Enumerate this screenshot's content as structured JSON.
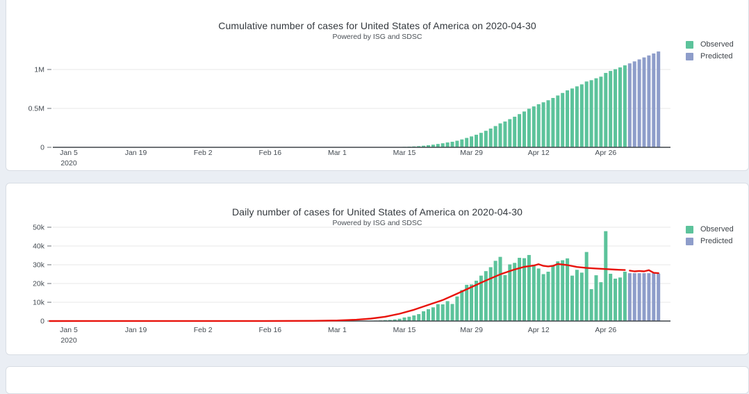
{
  "page": {
    "background_color": "#eaeef4",
    "panel_border_color": "#d8dde4",
    "observed_color": "#5cc39b",
    "predicted_color": "#8e9dca",
    "trend_color": "#e8130c"
  },
  "chart_data": [
    {
      "type": "bar",
      "title": "Cumulative number of cases for United States of America on 2020-04-30",
      "subtitle": "Powered by ISG and SDSC",
      "legend": [
        {
          "label": "Observed",
          "color": "#5cc39b"
        },
        {
          "label": "Predicted",
          "color": "#8e9dca"
        }
      ],
      "legend_position": "right-top",
      "grid": true,
      "ylim": [
        0,
        1300000
      ],
      "yticks": [
        {
          "value": 0,
          "label": "0"
        },
        {
          "value": 500000,
          "label": "0.5M"
        },
        {
          "value": 1000000,
          "label": "1M"
        }
      ],
      "xticks": [
        {
          "date": "2020-01-05",
          "label": "Jan 5",
          "sub": "2020"
        },
        {
          "date": "2020-01-19",
          "label": "Jan 19"
        },
        {
          "date": "2020-02-02",
          "label": "Feb 2"
        },
        {
          "date": "2020-02-16",
          "label": "Feb 16"
        },
        {
          "date": "2020-03-01",
          "label": "Mar 1"
        },
        {
          "date": "2020-03-15",
          "label": "Mar 15"
        },
        {
          "date": "2020-03-29",
          "label": "Mar 29"
        },
        {
          "date": "2020-04-12",
          "label": "Apr 12"
        },
        {
          "date": "2020-04-26",
          "label": "Apr 26"
        }
      ],
      "series": [
        {
          "name": "Observed",
          "color": "#5cc39b",
          "start": "2020-03-01",
          "cadence": "daily",
          "values": [
            20,
            40,
            70,
            120,
            200,
            300,
            450,
            650,
            900,
            1250,
            1750,
            2350,
            3200,
            4400,
            6300,
            8600,
            11600,
            15300,
            20500,
            26800,
            34100,
            43100,
            52000,
            62600,
            71700,
            84800,
            101300,
            120600,
            140100,
            161600,
            185800,
            212400,
            241100,
            273200,
            307400,
            331900,
            362100,
            393100,
            426800,
            460300,
            495500,
            525500,
            553500,
            578500,
            604800,
            634100,
            665900,
            698300,
            731700,
            755900,
            783200,
            809000,
            845800,
            862800,
            887200,
            907900,
            955800,
            981000,
            1003600,
            1026800,
            1053100
          ]
        },
        {
          "name": "Predicted",
          "color": "#8e9dca",
          "start": "2020-05-01",
          "cadence": "daily",
          "values": [
            1078600,
            1104100,
            1129600,
            1155100,
            1180600,
            1206100,
            1231400
          ]
        }
      ]
    },
    {
      "type": "bar",
      "title": "Daily number of cases for United States of America on 2020-04-30",
      "subtitle": "Powered by ISG and SDSC",
      "legend": [
        {
          "label": "Observed",
          "color": "#5cc39b"
        },
        {
          "label": "Predicted",
          "color": "#8e9dca"
        }
      ],
      "legend_position": "right-top",
      "grid": true,
      "ylim": [
        0,
        51000
      ],
      "yticks": [
        {
          "value": 0,
          "label": "0"
        },
        {
          "value": 10000,
          "label": "10k"
        },
        {
          "value": 20000,
          "label": "20k"
        },
        {
          "value": 30000,
          "label": "30k"
        },
        {
          "value": 40000,
          "label": "40k"
        },
        {
          "value": 50000,
          "label": "50k"
        }
      ],
      "xticks": [
        {
          "date": "2020-01-05",
          "label": "Jan 5",
          "sub": "2020"
        },
        {
          "date": "2020-01-19",
          "label": "Jan 19"
        },
        {
          "date": "2020-02-02",
          "label": "Feb 2"
        },
        {
          "date": "2020-02-16",
          "label": "Feb 16"
        },
        {
          "date": "2020-03-01",
          "label": "Mar 1"
        },
        {
          "date": "2020-03-15",
          "label": "Mar 15"
        },
        {
          "date": "2020-03-29",
          "label": "Mar 29"
        },
        {
          "date": "2020-04-12",
          "label": "Apr 12"
        },
        {
          "date": "2020-04-26",
          "label": "Apr 26"
        }
      ],
      "series": [
        {
          "name": "Observed",
          "color": "#5cc39b",
          "start": "2020-03-01",
          "cadence": "daily",
          "values": [
            20,
            20,
            30,
            50,
            80,
            100,
            150,
            200,
            250,
            350,
            500,
            600,
            850,
            1200,
            1900,
            2300,
            3000,
            3700,
            5200,
            6300,
            7300,
            9000,
            8900,
            10600,
            9100,
            13100,
            16500,
            19300,
            19500,
            21500,
            24200,
            26600,
            28700,
            32100,
            34200,
            24500,
            30200,
            31000,
            33700,
            33500,
            35200,
            30000,
            28000,
            25000,
            26300,
            29300,
            31800,
            32400,
            33400,
            24200,
            27300,
            25800,
            36800,
            17000,
            24400,
            20700,
            47900,
            25200,
            22600,
            23200,
            26300
          ]
        },
        {
          "name": "Predicted",
          "color": "#8e9dca",
          "start": "2020-05-01",
          "cadence": "daily",
          "values": [
            25500,
            25500,
            25500,
            25500,
            25500,
            25500,
            25300
          ]
        }
      ],
      "trend_line": {
        "name": "model trend",
        "color": "#e8130c",
        "observed_points": [
          [
            "2020-01-01",
            0
          ],
          [
            "2020-02-15",
            50
          ],
          [
            "2020-02-25",
            120
          ],
          [
            "2020-03-01",
            280
          ],
          [
            "2020-03-05",
            700
          ],
          [
            "2020-03-08",
            1300
          ],
          [
            "2020-03-11",
            2300
          ],
          [
            "2020-03-14",
            3900
          ],
          [
            "2020-03-17",
            6000
          ],
          [
            "2020-03-20",
            8600
          ],
          [
            "2020-03-23",
            11200
          ],
          [
            "2020-03-26",
            14600
          ],
          [
            "2020-03-29",
            18100
          ],
          [
            "2020-04-01",
            21600
          ],
          [
            "2020-04-04",
            24900
          ],
          [
            "2020-04-07",
            27500
          ],
          [
            "2020-04-09",
            28900
          ],
          [
            "2020-04-11",
            29600
          ],
          [
            "2020-04-12",
            30300
          ],
          [
            "2020-04-13",
            29400
          ],
          [
            "2020-04-14",
            29100
          ],
          [
            "2020-04-15",
            29400
          ],
          [
            "2020-04-16",
            30400
          ],
          [
            "2020-04-17",
            30100
          ],
          [
            "2020-04-18",
            29800
          ],
          [
            "2020-04-20",
            28800
          ],
          [
            "2020-04-22",
            28300
          ],
          [
            "2020-04-24",
            28000
          ],
          [
            "2020-04-26",
            27700
          ],
          [
            "2020-04-28",
            27400
          ],
          [
            "2020-04-30",
            27200
          ]
        ],
        "predicted_points": [
          [
            "2020-05-01",
            26900
          ],
          [
            "2020-05-02",
            26500
          ],
          [
            "2020-05-03",
            26700
          ],
          [
            "2020-05-04",
            26500
          ],
          [
            "2020-05-05",
            27100
          ],
          [
            "2020-05-06",
            25700
          ],
          [
            "2020-05-07",
            25500
          ]
        ]
      }
    }
  ]
}
